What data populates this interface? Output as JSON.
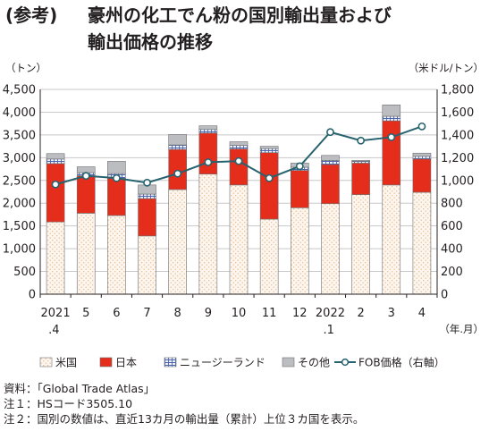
{
  "header": {
    "prefix": "(参考)",
    "title_line1": "豪州の化工でん粉の国別輸出量および",
    "title_line2": "輸出価格の推移"
  },
  "chart_data": {
    "type": "bar",
    "stacked": true,
    "categories": [
      "2021",
      "5",
      "6",
      "7",
      "8",
      "9",
      "10",
      "11",
      "12",
      "2022",
      "2",
      "3",
      "4"
    ],
    "category_sublabels": [
      ".4",
      "",
      "",
      "",
      "",
      "",
      "",
      "",
      "",
      ".1",
      "",
      "",
      ""
    ],
    "series": [
      {
        "name": "米国",
        "axis": "left",
        "values": [
          1590,
          1780,
          1730,
          1280,
          2300,
          2640,
          2400,
          1650,
          1900,
          1990,
          2190,
          2400,
          2240
        ]
      },
      {
        "name": "日本",
        "axis": "left",
        "values": [
          1280,
          820,
          820,
          820,
          880,
          900,
          790,
          1460,
          820,
          860,
          690,
          1410,
          730
        ]
      },
      {
        "name": "ニュージーランド",
        "axis": "left",
        "values": [
          100,
          70,
          100,
          100,
          100,
          80,
          80,
          90,
          70,
          90,
          40,
          100,
          60
        ]
      },
      {
        "name": "その他",
        "axis": "left",
        "values": [
          120,
          130,
          270,
          200,
          230,
          80,
          80,
          50,
          90,
          110,
          20,
          250,
          70
        ]
      },
      {
        "name": "FOB価格（右軸）",
        "axis": "right",
        "type": "line",
        "values": [
          965,
          1040,
          1020,
          980,
          1060,
          1160,
          1170,
          1020,
          1125,
          1425,
          1350,
          1380,
          1475
        ]
      }
    ],
    "left_axis": {
      "unit": "（トン）",
      "ylim": [
        0,
        4500
      ],
      "ticks": [
        "0",
        "500",
        "1,000",
        "1,500",
        "2,000",
        "2,500",
        "3,000",
        "3,500",
        "4,000",
        "4,500"
      ]
    },
    "right_axis": {
      "unit": "（米ドル/トン）",
      "ylim": [
        0,
        1800
      ],
      "ticks": [
        "0",
        "200",
        "400",
        "600",
        "800",
        "1,000",
        "1,200",
        "1,400",
        "1,600",
        "1,800"
      ]
    },
    "xlabel": "（年.月）",
    "grid": true,
    "legend_position": "bottom"
  },
  "colors": {
    "usa_fill": "#fdf6ee",
    "usa_dot": "#e3b588",
    "japan": "#e52d1c",
    "nz_fill": "#eef1f8",
    "nz_grid": "#4d65ae",
    "other": "#bcbdc0",
    "line": "#27636f",
    "grid": "#c8c8c8",
    "axis": "#231f20"
  },
  "notes": [
    "資料：「Global Trade Atlas」",
    "注１：HSコード3505.10",
    "注２：国別の数値は、直近13カ月の輸出量（累計）上位３カ国を表示。"
  ]
}
